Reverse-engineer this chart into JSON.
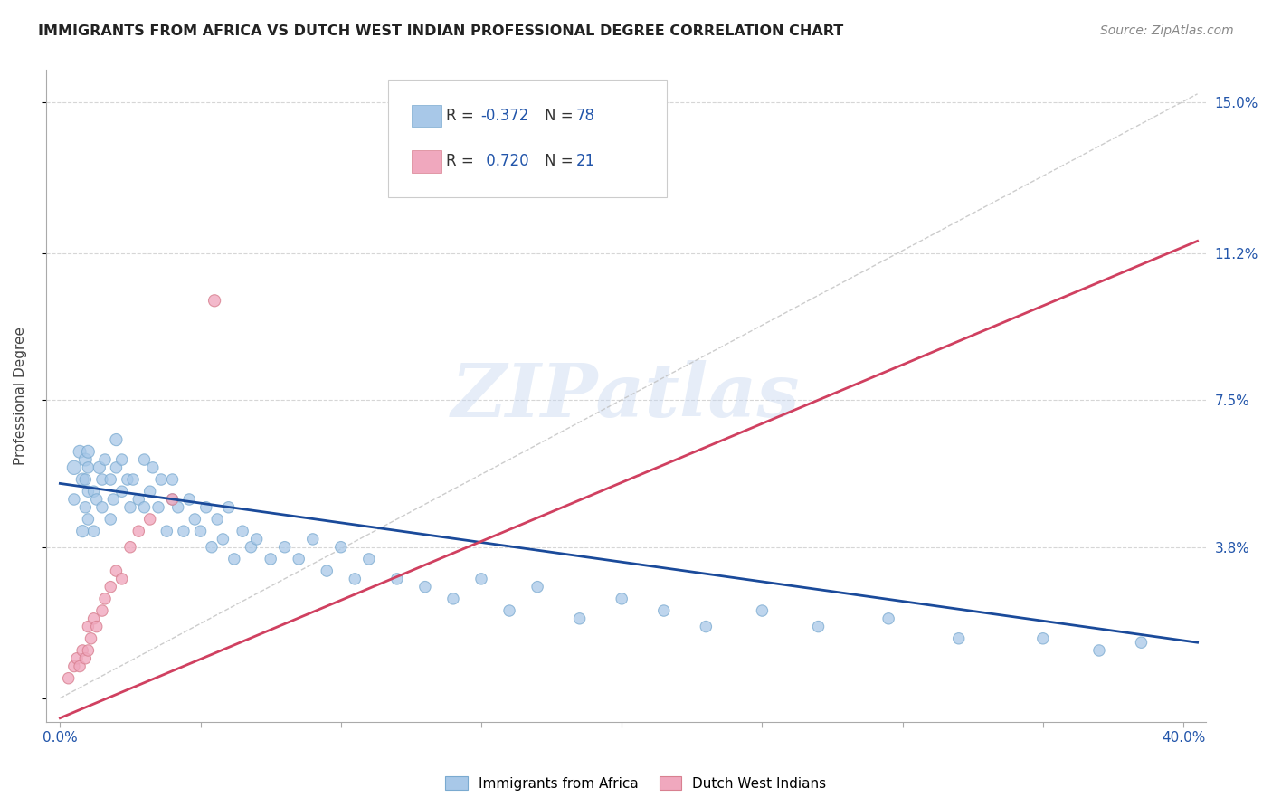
{
  "title": "IMMIGRANTS FROM AFRICA VS DUTCH WEST INDIAN PROFESSIONAL DEGREE CORRELATION CHART",
  "source": "Source: ZipAtlas.com",
  "ylabel": "Professional Degree",
  "xlim": [
    -0.005,
    0.408
  ],
  "ylim": [
    -0.006,
    0.158
  ],
  "y_tick_positions": [
    0.0,
    0.038,
    0.075,
    0.112,
    0.15
  ],
  "y_tick_labels": [
    "",
    "3.8%",
    "7.5%",
    "11.2%",
    "15.0%"
  ],
  "x_tick_positions": [
    0.0,
    0.05,
    0.1,
    0.15,
    0.2,
    0.25,
    0.3,
    0.35,
    0.4
  ],
  "x_tick_labels": [
    "0.0%",
    "",
    "",
    "",
    "",
    "",
    "",
    "",
    "40.0%"
  ],
  "grid_color": "#cccccc",
  "bg_color": "#ffffff",
  "watermark_text": "ZIPatlas",
  "blue_color": "#a8c8e8",
  "blue_edge": "#7aaad0",
  "pink_color": "#f0a8be",
  "pink_edge": "#d88090",
  "blue_line_color": "#1a4a9a",
  "pink_line_color": "#d04060",
  "dashed_color": "#c0c0c0",
  "africa_x": [
    0.005,
    0.005,
    0.007,
    0.008,
    0.008,
    0.009,
    0.009,
    0.009,
    0.01,
    0.01,
    0.01,
    0.01,
    0.012,
    0.012,
    0.013,
    0.014,
    0.015,
    0.015,
    0.016,
    0.018,
    0.018,
    0.019,
    0.02,
    0.02,
    0.022,
    0.022,
    0.024,
    0.025,
    0.026,
    0.028,
    0.03,
    0.03,
    0.032,
    0.033,
    0.035,
    0.036,
    0.038,
    0.04,
    0.04,
    0.042,
    0.044,
    0.046,
    0.048,
    0.05,
    0.052,
    0.054,
    0.056,
    0.058,
    0.06,
    0.062,
    0.065,
    0.068,
    0.07,
    0.075,
    0.08,
    0.085,
    0.09,
    0.095,
    0.1,
    0.105,
    0.11,
    0.12,
    0.13,
    0.14,
    0.15,
    0.16,
    0.17,
    0.185,
    0.2,
    0.215,
    0.23,
    0.25,
    0.27,
    0.295,
    0.32,
    0.35,
    0.37,
    0.385
  ],
  "africa_y": [
    0.058,
    0.05,
    0.062,
    0.042,
    0.055,
    0.048,
    0.055,
    0.06,
    0.052,
    0.045,
    0.058,
    0.062,
    0.042,
    0.052,
    0.05,
    0.058,
    0.048,
    0.055,
    0.06,
    0.045,
    0.055,
    0.05,
    0.058,
    0.065,
    0.052,
    0.06,
    0.055,
    0.048,
    0.055,
    0.05,
    0.06,
    0.048,
    0.052,
    0.058,
    0.048,
    0.055,
    0.042,
    0.05,
    0.055,
    0.048,
    0.042,
    0.05,
    0.045,
    0.042,
    0.048,
    0.038,
    0.045,
    0.04,
    0.048,
    0.035,
    0.042,
    0.038,
    0.04,
    0.035,
    0.038,
    0.035,
    0.04,
    0.032,
    0.038,
    0.03,
    0.035,
    0.03,
    0.028,
    0.025,
    0.03,
    0.022,
    0.028,
    0.02,
    0.025,
    0.022,
    0.018,
    0.022,
    0.018,
    0.02,
    0.015,
    0.015,
    0.012,
    0.014
  ],
  "africa_sizes_raw": [
    120,
    80,
    100,
    90,
    100,
    80,
    80,
    100,
    80,
    80,
    80,
    100,
    80,
    80,
    80,
    90,
    80,
    80,
    80,
    80,
    80,
    80,
    80,
    90,
    80,
    80,
    80,
    80,
    80,
    80,
    80,
    80,
    80,
    80,
    80,
    80,
    80,
    80,
    80,
    80,
    80,
    80,
    80,
    80,
    80,
    80,
    80,
    80,
    80,
    80,
    80,
    80,
    80,
    80,
    80,
    80,
    80,
    80,
    80,
    80,
    80,
    80,
    80,
    80,
    80,
    80,
    80,
    80,
    80,
    80,
    80,
    80,
    80,
    80,
    80,
    80,
    80,
    80
  ],
  "africa_big_indices": [
    0,
    7,
    9,
    11
  ],
  "africa_big_sizes": [
    600,
    400,
    350,
    300
  ],
  "dwi_x": [
    0.003,
    0.005,
    0.006,
    0.007,
    0.008,
    0.009,
    0.01,
    0.01,
    0.011,
    0.012,
    0.013,
    0.015,
    0.016,
    0.018,
    0.02,
    0.022,
    0.025,
    0.028,
    0.032,
    0.04,
    0.055
  ],
  "dwi_y": [
    0.005,
    0.008,
    0.01,
    0.008,
    0.012,
    0.01,
    0.012,
    0.018,
    0.015,
    0.02,
    0.018,
    0.022,
    0.025,
    0.028,
    0.032,
    0.03,
    0.038,
    0.042,
    0.045,
    0.05,
    0.1
  ],
  "dwi_sizes": [
    80,
    80,
    80,
    80,
    80,
    80,
    80,
    80,
    80,
    80,
    80,
    80,
    80,
    80,
    80,
    80,
    80,
    80,
    80,
    80,
    90
  ],
  "africa_line_x": [
    0.0,
    0.405
  ],
  "africa_line_y": [
    0.054,
    0.014
  ],
  "dwi_line_x": [
    0.0,
    0.405
  ],
  "dwi_line_y": [
    -0.005,
    0.115
  ],
  "diag_line_x": [
    0.0,
    0.405
  ],
  "diag_line_y": [
    0.0,
    0.152
  ],
  "legend_items": [
    {
      "label_r": "R = ",
      "value_r": "-0.372",
      "label_n": "N = ",
      "value_n": "78"
    },
    {
      "label_r": "R = ",
      "value_r": " 0.720",
      "label_n": "N = ",
      "value_n": "21"
    }
  ]
}
